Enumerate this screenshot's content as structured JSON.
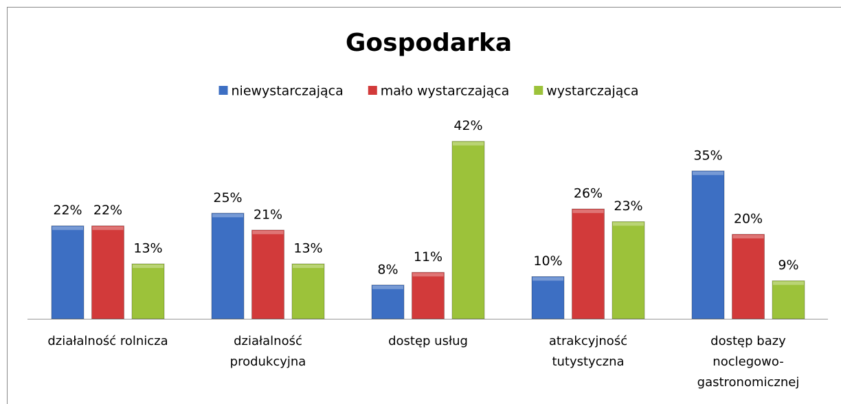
{
  "chart_data": {
    "type": "bar",
    "title": "Gospodarka",
    "categories": [
      "działalność rolnicza",
      "działalność produkcyjna",
      "dostęp usług",
      "atrakcyjność tutystyczna",
      "dostęp bazy noclegowo-gastronomicznej"
    ],
    "series": [
      {
        "name": "niewystarczająca",
        "color": "#3d6fc3",
        "values": [
          22,
          25,
          8,
          10,
          35
        ],
        "value_labels": [
          "22%",
          "25%",
          "8%",
          "10%",
          "35%"
        ]
      },
      {
        "name": "mało wystarczająca",
        "color": "#d23a3a",
        "values": [
          22,
          21,
          11,
          26,
          20
        ],
        "value_labels": [
          "22%",
          "21%",
          "11%",
          "26%",
          "20%"
        ]
      },
      {
        "name": "wystarczająca",
        "color": "#9cc23a",
        "values": [
          13,
          13,
          42,
          23,
          9
        ],
        "value_labels": [
          "13%",
          "13%",
          "42%",
          "23%",
          "9%"
        ]
      }
    ],
    "legend": "top"
  }
}
